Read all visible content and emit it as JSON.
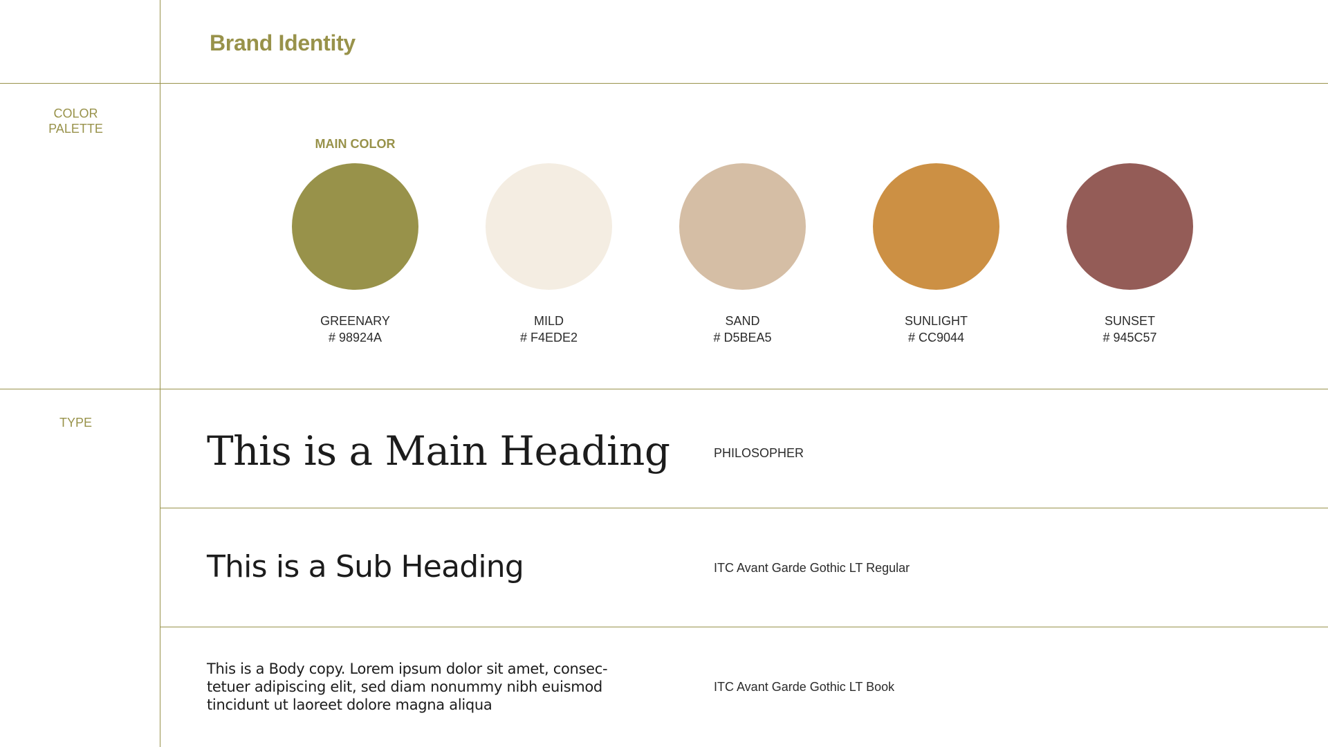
{
  "header": {
    "title": "Brand Identity"
  },
  "sections": {
    "color_palette_label": "COLOR\nPALETTE",
    "type_label": "TYPE"
  },
  "palette": {
    "main_color_label": "MAIN COLOR",
    "colors": [
      {
        "name": "GREENARY",
        "hex_label": "# 98924A",
        "color": "#98924A"
      },
      {
        "name": "MILD",
        "hex_label": "# F4EDE2",
        "color": "#F4EDE2"
      },
      {
        "name": "SAND",
        "hex_label": "# D5BEA5",
        "color": "#D5BEA5"
      },
      {
        "name": "SUNLIGHT",
        "hex_label": "# CC9044",
        "color": "#CC9044"
      },
      {
        "name": "SUNSET",
        "hex_label": "# 945C57",
        "color": "#945C57"
      }
    ]
  },
  "typography": [
    {
      "sample": "This is a Main Heading",
      "font": "PHILOSOPHER"
    },
    {
      "sample": "This is a Sub Heading",
      "font": "ITC Avant Garde Gothic LT Regular"
    },
    {
      "sample": "This is a Body copy. Lorem ipsum dolor sit amet, consec-\ntetuer adipiscing elit, sed diam nonummy nibh euismod\ntincidunt ut laoreet dolore magna aliqua",
      "font": "ITC Avant Garde Gothic LT Book"
    }
  ],
  "accent_color": "#98924A"
}
